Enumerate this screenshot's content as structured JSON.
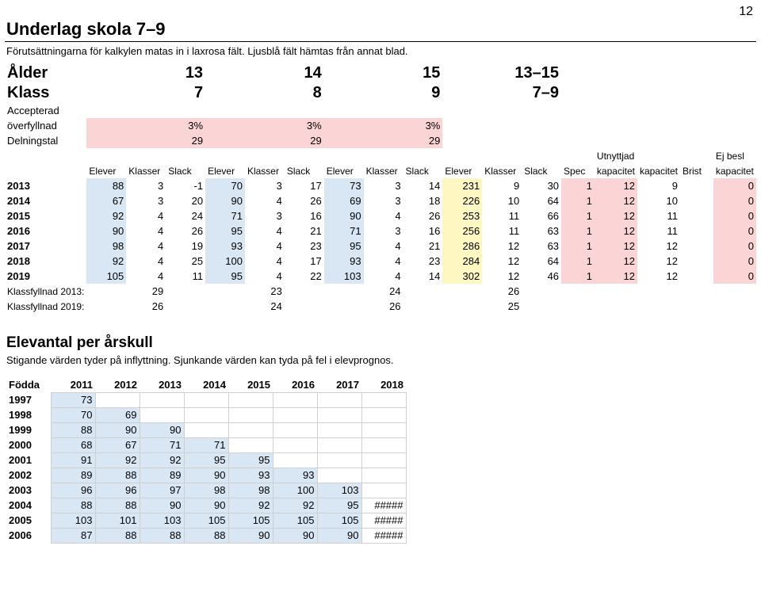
{
  "page_number": "12",
  "title": "Underlag skola 7–9",
  "subtitle": "Förutsättningarna för kalkylen matas in i laxrosa fält. Ljusblå fält hämtas från annat blad.",
  "colors": {
    "pink": "#fbd5d5",
    "blue": "#d9e7f5",
    "yellow": "#fff7c2",
    "grid": "#d0d0d0",
    "border": "#000000",
    "background": "#ffffff"
  },
  "main": {
    "row_age": {
      "label": "Ålder",
      "vals": [
        "13",
        "14",
        "15",
        "13–15"
      ]
    },
    "row_klass": {
      "label": "Klass",
      "vals": [
        "7",
        "8",
        "9",
        "7–9"
      ]
    },
    "row_over_lbl1": "Accepterad",
    "row_over": {
      "label": "överfyllnad",
      "vals": [
        "3%",
        "3%",
        "3%"
      ]
    },
    "row_deln": {
      "label": "Delningstal",
      "vals": [
        "29",
        "29",
        "29"
      ]
    },
    "top_right": {
      "line1": "Utnyttjad",
      "line2": "Ej besl"
    },
    "col_subheads": [
      "Elever",
      "Klasser",
      "Slack",
      "Elever",
      "Klasser",
      "Slack",
      "Elever",
      "Klasser",
      "Slack",
      "Elever",
      "Klasser",
      "Slack",
      "Spec",
      "kapacitet",
      "kapacitet",
      "Brist",
      "kapacitet"
    ],
    "rows": [
      {
        "year": "2013",
        "cells": [
          "88",
          "3",
          "-1",
          "70",
          "3",
          "17",
          "73",
          "3",
          "14",
          "231",
          "9",
          "30",
          "1",
          "12",
          "9",
          "",
          "0"
        ]
      },
      {
        "year": "2014",
        "cells": [
          "67",
          "3",
          "20",
          "90",
          "4",
          "26",
          "69",
          "3",
          "18",
          "226",
          "10",
          "64",
          "1",
          "12",
          "10",
          "",
          "0"
        ]
      },
      {
        "year": "2015",
        "cells": [
          "92",
          "4",
          "24",
          "71",
          "3",
          "16",
          "90",
          "4",
          "26",
          "253",
          "11",
          "66",
          "1",
          "12",
          "11",
          "",
          "0"
        ]
      },
      {
        "year": "2016",
        "cells": [
          "90",
          "4",
          "26",
          "95",
          "4",
          "21",
          "71",
          "3",
          "16",
          "256",
          "11",
          "63",
          "1",
          "12",
          "11",
          "",
          "0"
        ]
      },
      {
        "year": "2017",
        "cells": [
          "98",
          "4",
          "19",
          "93",
          "4",
          "23",
          "95",
          "4",
          "21",
          "286",
          "12",
          "63",
          "1",
          "12",
          "12",
          "",
          "0"
        ]
      },
      {
        "year": "2018",
        "cells": [
          "92",
          "4",
          "25",
          "100",
          "4",
          "17",
          "93",
          "4",
          "23",
          "284",
          "12",
          "64",
          "1",
          "12",
          "12",
          "",
          "0"
        ]
      },
      {
        "year": "2019",
        "cells": [
          "105",
          "4",
          "11",
          "95",
          "4",
          "22",
          "103",
          "4",
          "14",
          "302",
          "12",
          "46",
          "1",
          "12",
          "12",
          "",
          "0"
        ]
      }
    ],
    "klassfyllnad": [
      {
        "label": "Klassfyllnad 2013:",
        "vals": [
          "29",
          "23",
          "24",
          "26"
        ]
      },
      {
        "label": "Klassfyllnad 2019:",
        "vals": [
          "26",
          "24",
          "26",
          "25"
        ]
      }
    ]
  },
  "section2": {
    "title": "Elevantal per årskull",
    "subtitle": "Stigande värden tyder på inflyttning. Sjunkande värden kan tyda på fel i elevprognos."
  },
  "cohort": {
    "header": [
      "Födda",
      "2011",
      "2012",
      "2013",
      "2014",
      "2015",
      "2016",
      "2017",
      "2018"
    ],
    "rows": [
      {
        "year": "1997",
        "cells": [
          "73",
          "",
          "",
          "",
          "",
          "",
          "",
          ""
        ]
      },
      {
        "year": "1998",
        "cells": [
          "70",
          "69",
          "",
          "",
          "",
          "",
          "",
          ""
        ]
      },
      {
        "year": "1999",
        "cells": [
          "88",
          "90",
          "90",
          "",
          "",
          "",
          "",
          ""
        ]
      },
      {
        "year": "2000",
        "cells": [
          "68",
          "67",
          "71",
          "71",
          "",
          "",
          "",
          ""
        ]
      },
      {
        "year": "2001",
        "cells": [
          "91",
          "92",
          "92",
          "95",
          "95",
          "",
          "",
          ""
        ]
      },
      {
        "year": "2002",
        "cells": [
          "89",
          "88",
          "89",
          "90",
          "93",
          "93",
          "",
          ""
        ]
      },
      {
        "year": "2003",
        "cells": [
          "96",
          "96",
          "97",
          "98",
          "98",
          "100",
          "103",
          ""
        ]
      },
      {
        "year": "2004",
        "cells": [
          "88",
          "88",
          "90",
          "90",
          "92",
          "92",
          "95",
          "#####"
        ]
      },
      {
        "year": "2005",
        "cells": [
          "103",
          "101",
          "103",
          "105",
          "105",
          "105",
          "105",
          "#####"
        ]
      },
      {
        "year": "2006",
        "cells": [
          "87",
          "88",
          "88",
          "88",
          "90",
          "90",
          "90",
          "#####"
        ]
      }
    ]
  }
}
